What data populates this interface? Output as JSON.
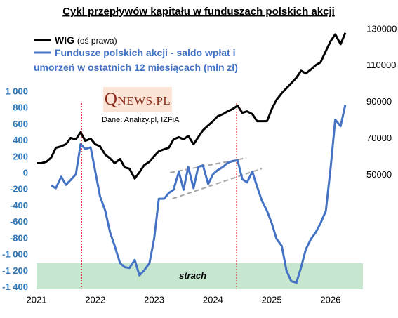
{
  "chart_data": {
    "type": "line",
    "title": "Cykl przepływów kapitału w funduszach polskich akcji",
    "source": "Dane: Analizy.pl, IZFiA",
    "logo": "QNEWS.PL",
    "axis_note": "(oś prawa)",
    "x": [
      2021,
      2021.08,
      2021.17,
      2021.25,
      2021.33,
      2021.42,
      2021.5,
      2021.58,
      2021.67,
      2021.75,
      2021.83,
      2021.92,
      2022,
      2022.08,
      2022.17,
      2022.25,
      2022.33,
      2022.42,
      2022.5,
      2022.58,
      2022.67,
      2022.75,
      2022.83,
      2022.92,
      2023,
      2023.08,
      2023.17,
      2023.25,
      2023.33,
      2023.42,
      2023.5,
      2023.58,
      2023.67,
      2023.75,
      2023.83,
      2023.92,
      2024,
      2024.08,
      2024.17,
      2024.25,
      2024.33,
      2024.42,
      2024.5,
      2024.58,
      2024.67,
      2024.75,
      2024.83,
      2024.92,
      2025,
      2025.08,
      2025.17,
      2025.25,
      2025.33,
      2025.42,
      2025.5,
      2025.58,
      2025.67,
      2025.75,
      2025.83,
      2025.92,
      2026,
      2026.08,
      2026.17,
      2026.25
    ],
    "xlim": [
      2021,
      2026.55
    ],
    "xticks": [
      2021,
      2022,
      2023,
      2024,
      2025,
      2026
    ],
    "ylim": [
      -1420,
      1800
    ],
    "yticks": [
      {
        "value": 1000,
        "label": "1 000"
      },
      800,
      600,
      400,
      200,
      0,
      -200,
      -400,
      -600,
      -800,
      {
        "value": -1000,
        "label": "-1 000"
      },
      {
        "value": -1200,
        "label": "-1 200"
      },
      {
        "value": -1400,
        "label": "-1 400"
      }
    ],
    "y2lim": [
      -12700,
      131500
    ],
    "y2ticks": [
      130000,
      110000,
      90000,
      70000,
      50000
    ],
    "series": [
      {
        "name": "WIG",
        "color": "#000000",
        "axis": "y2",
        "values": [
          56500,
          56500,
          57300,
          59600,
          65000,
          65800,
          66900,
          70400,
          69600,
          73500,
          68800,
          70000,
          66900,
          65800,
          61200,
          59200,
          56500,
          58800,
          54200,
          53500,
          48100,
          51500,
          55400,
          57300,
          60400,
          63100,
          64200,
          65000,
          69600,
          70800,
          69600,
          71500,
          66900,
          70800,
          74600,
          77300,
          79600,
          82300,
          83500,
          85000,
          86200,
          88100,
          84200,
          85000,
          83500,
          79600,
          79600,
          79600,
          86200,
          91200,
          95000,
          97700,
          100400,
          103500,
          107300,
          105800,
          108100,
          110400,
          111900,
          118100,
          123500,
          127300,
          121900,
          128100
        ]
      },
      {
        "name": "Fundusze polskich akcji - saldo wpłat i umorzeń w ostatnich 12 miesiącach (mln zł)",
        "color": "#4472c4",
        "values": [
          null,
          null,
          null,
          -150,
          -180,
          -40,
          -140,
          -80,
          -10,
          360,
          300,
          320,
          20,
          -280,
          -460,
          -720,
          -890,
          -1100,
          -1150,
          -1160,
          -1060,
          -1250,
          -1190,
          -1100,
          -800,
          -310,
          -310,
          -240,
          -200,
          20,
          -200,
          80,
          -180,
          80,
          100,
          -130,
          -10,
          40,
          80,
          130,
          150,
          160,
          -70,
          -110,
          20,
          -160,
          -330,
          -460,
          -610,
          -800,
          -890,
          -1190,
          -1320,
          -1340,
          -1150,
          -930,
          -800,
          -720,
          -610,
          -460,
          60,
          660,
          580,
          840
        ]
      }
    ],
    "fear_band": {
      "from": -1100,
      "to": -1420,
      "label": "strach",
      "color": "#c6e6d0"
    },
    "reference_x": [
      2021.77,
      2024.4
    ],
    "reference_color": "#e03b3b",
    "trend_lines": [
      {
        "x": [
          2023.27,
          2024.57
        ],
        "y": [
          10,
          190
        ]
      },
      {
        "x": [
          2023.31,
          2024.83
        ],
        "y": [
          -310,
          60
        ]
      }
    ],
    "trend_color": "#a6a6a6"
  }
}
